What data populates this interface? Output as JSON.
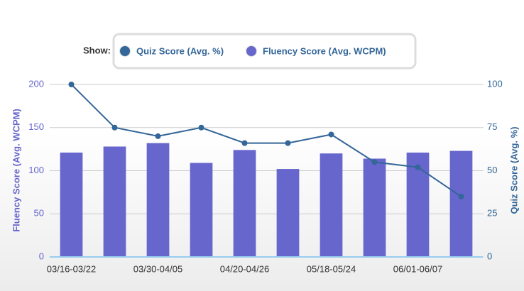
{
  "chart_data": {
    "type": "combo",
    "legend_title": "Show:",
    "ylabel": "Fluency Score (Avg. WCPM)",
    "y2label": "Quiz Score (Avg. %)",
    "categories": [
      "03/16-03/22",
      null,
      "03/30-04/05",
      null,
      "04/20-04/26",
      null,
      "05/18-05/24",
      null,
      "06/01-06/07",
      null
    ],
    "series": [
      {
        "name": "Quiz Score (Avg. %)",
        "type": "line",
        "axis": "y2",
        "color": "#336699",
        "values": [
          100,
          75,
          70,
          75,
          66,
          66,
          71,
          55,
          52,
          35
        ]
      },
      {
        "name": "Fluency Score (Avg. WCPM)",
        "type": "bar",
        "color": "#6666cc",
        "values": [
          121,
          128,
          132,
          109,
          124,
          102,
          120,
          114,
          121,
          123
        ]
      }
    ],
    "ylim": [
      0,
      200
    ],
    "yticks": [
      0,
      50,
      100,
      150,
      200
    ],
    "y2lim": [
      0,
      100
    ],
    "y2ticks": [
      0,
      25,
      50,
      75,
      100
    ],
    "grid": true
  }
}
